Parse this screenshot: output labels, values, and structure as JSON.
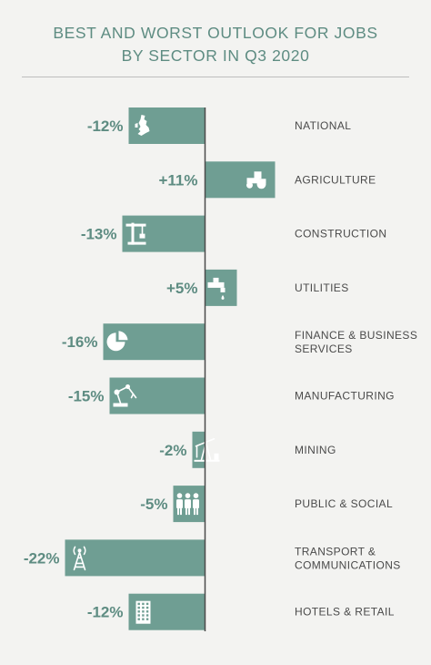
{
  "chart_data": {
    "type": "bar",
    "orientation": "horizontal",
    "title_lines": [
      "BEST AND WORST OUTLOOK FOR JOBS",
      "BY SECTOR IN Q3 2020"
    ],
    "categories": [
      [
        "NATIONAL"
      ],
      [
        "AGRICULTURE"
      ],
      [
        "CONSTRUCTION"
      ],
      [
        "UTILITIES"
      ],
      [
        "FINANCE & BUSINESS",
        "SERVICES"
      ],
      [
        "MANUFACTURING"
      ],
      [
        "MINING"
      ],
      [
        "PUBLIC & SOCIAL"
      ],
      [
        "TRANSPORT &",
        "COMMUNICATIONS"
      ],
      [
        "HOTELS & RETAIL"
      ]
    ],
    "values": [
      -12,
      11,
      -13,
      5,
      -16,
      -15,
      -2,
      -5,
      -22,
      -12
    ],
    "value_labels": [
      "-12%",
      "+11%",
      "-13%",
      "+5%",
      "-16%",
      "-15%",
      "-2%",
      "-5%",
      "-22%",
      "-12%"
    ],
    "icons": [
      "uk-map-icon",
      "tractor-icon",
      "crane-icon",
      "tap-icon",
      "pie-chart-icon",
      "robot-arm-icon",
      "oil-pump-icon",
      "people-icon",
      "radio-tower-icon",
      "building-icon"
    ],
    "grid": false,
    "legend": "none",
    "colors": {
      "bar": "#6f9e93",
      "title": "#5e8c82",
      "value_label": "#5e8c82",
      "category_label": "#4a4a4a",
      "background": "#f3f3f1"
    }
  }
}
